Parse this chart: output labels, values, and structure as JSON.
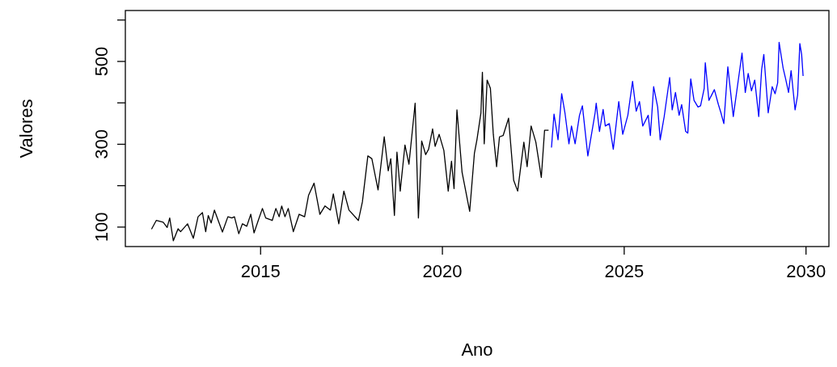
{
  "chart_data": {
    "type": "line",
    "xlabel": "Ano",
    "ylabel": "Valores",
    "xlim": [
      2011.28,
      2030.63
    ],
    "xticks": [
      2015,
      2020,
      2025,
      2030
    ],
    "ylim": [
      53,
      623
    ],
    "yticks": [
      100,
      {
        "value": 200,
        "label": null
      },
      300,
      {
        "value": 400,
        "label": null
      },
      500,
      {
        "value": 600,
        "label": null
      }
    ],
    "grid": false,
    "marker": "none",
    "line_style": "solid",
    "series": [
      {
        "color": "#000000",
        "x": [
          2012.0,
          2012.13,
          2012.32,
          2012.43,
          2012.5,
          2012.6,
          2012.73,
          2012.8,
          2012.99,
          2013.15,
          2013.28,
          2013.4,
          2013.49,
          2013.56,
          2013.64,
          2013.73,
          2013.95,
          2014.1,
          2014.21,
          2014.28,
          2014.4,
          2014.5,
          2014.62,
          2014.73,
          2014.82,
          2014.95,
          2015.05,
          2015.14,
          2015.32,
          2015.42,
          2015.51,
          2015.58,
          2015.67,
          2015.76,
          2015.9,
          2016.06,
          2016.21,
          2016.32,
          2016.47,
          2016.63,
          2016.77,
          2016.92,
          2017.0,
          2017.15,
          2017.29,
          2017.43,
          2017.69,
          2017.8,
          2017.95,
          2018.06,
          2018.23,
          2018.4,
          2018.51,
          2018.58,
          2018.68,
          2018.75,
          2018.84,
          2018.97,
          2019.08,
          2019.25,
          2019.34,
          2019.43,
          2019.54,
          2019.62,
          2019.73,
          2019.8,
          2019.91,
          2020.04,
          2020.16,
          2020.25,
          2020.32,
          2020.4,
          2020.54,
          2020.75,
          2020.88,
          2020.95,
          2021.06,
          2021.1,
          2021.15,
          2021.23,
          2021.32,
          2021.4,
          2021.49,
          2021.57,
          2021.67,
          2021.82,
          2021.96,
          2022.07,
          2022.24,
          2022.33,
          2022.44,
          2022.57,
          2022.72,
          2022.81,
          2022.92
        ],
        "values": [
          95,
          116,
          112,
          99,
          122,
          67,
          96,
          89,
          108,
          73,
          125,
          135,
          89,
          128,
          110,
          141,
          88,
          125,
          122,
          125,
          84,
          108,
          102,
          131,
          86,
          120,
          145,
          122,
          116,
          145,
          125,
          151,
          125,
          145,
          89,
          131,
          125,
          177,
          206,
          131,
          151,
          141,
          180,
          108,
          187,
          141,
          116,
          161,
          272,
          265,
          190,
          318,
          236,
          265,
          128,
          281,
          187,
          298,
          252,
          399,
          122,
          308,
          275,
          288,
          337,
          295,
          324,
          285,
          187,
          259,
          193,
          383,
          233,
          138,
          278,
          311,
          376,
          474,
          301,
          455,
          435,
          324,
          246,
          318,
          321,
          363,
          213,
          187,
          305,
          246,
          344,
          305,
          220,
          334,
          334
        ]
      },
      {
        "color": "#0000ff",
        "x": [
          2023.0,
          2023.07,
          2023.18,
          2023.28,
          2023.37,
          2023.48,
          2023.55,
          2023.65,
          2023.77,
          2023.85,
          2024.0,
          2024.2,
          2024.23,
          2024.32,
          2024.42,
          2024.48,
          2024.59,
          2024.7,
          2024.85,
          2024.96,
          2025.1,
          2025.23,
          2025.33,
          2025.42,
          2025.51,
          2025.66,
          2025.72,
          2025.81,
          2025.92,
          2025.99,
          2026.1,
          2026.25,
          2026.32,
          2026.41,
          2026.51,
          2026.58,
          2026.69,
          2026.75,
          2026.83,
          2026.92,
          2027.03,
          2027.1,
          2027.2,
          2027.23,
          2027.33,
          2027.48,
          2027.59,
          2027.66,
          2027.74,
          2027.85,
          2028.0,
          2028.24,
          2028.33,
          2028.41,
          2028.5,
          2028.59,
          2028.7,
          2028.78,
          2028.84,
          2028.96,
          2029.07,
          2029.15,
          2029.22,
          2029.26,
          2029.37,
          2029.44,
          2029.52,
          2029.59,
          2029.7,
          2029.77,
          2029.83,
          2029.88,
          2029.92
        ],
        "values": [
          292,
          373,
          311,
          422,
          376,
          301,
          344,
          301,
          370,
          393,
          272,
          376,
          399,
          331,
          384,
          344,
          350,
          288,
          403,
          324,
          370,
          452,
          380,
          403,
          344,
          370,
          321,
          439,
          390,
          311,
          367,
          461,
          383,
          425,
          370,
          396,
          331,
          327,
          458,
          406,
          390,
          393,
          435,
          497,
          406,
          432,
          396,
          376,
          350,
          487,
          367,
          520,
          425,
          471,
          429,
          455,
          367,
          481,
          517,
          376,
          439,
          422,
          448,
          546,
          484,
          458,
          425,
          478,
          383,
          419,
          543,
          517,
          465
        ]
      }
    ]
  }
}
